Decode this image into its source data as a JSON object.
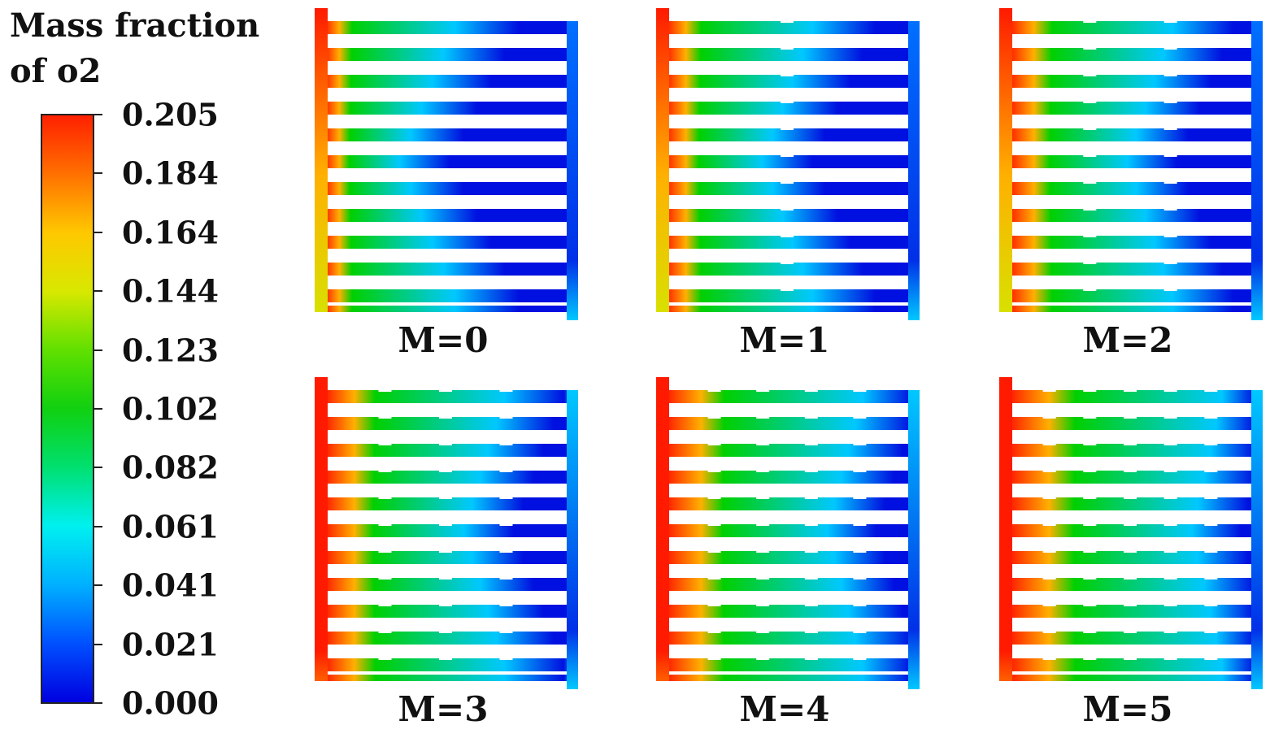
{
  "legend": {
    "title": "Mass fraction\nof o2",
    "ticks": [
      "0.205",
      "0.184",
      "0.164",
      "0.144",
      "0.123",
      "0.102",
      "0.082",
      "0.061",
      "0.041",
      "0.021",
      "0.000"
    ],
    "colormap": [
      "#0000e0",
      "#0050ff",
      "#00b0ff",
      "#00f0f0",
      "#00e070",
      "#10d010",
      "#60e000",
      "#d8e800",
      "#ffc800",
      "#ff7000",
      "#ff2000"
    ]
  },
  "panels": [
    {
      "label": "M=0",
      "baffles": 0
    },
    {
      "label": "M=1",
      "baffles": 1
    },
    {
      "label": "M=2",
      "baffles": 2
    },
    {
      "label": "M=3",
      "baffles": 3
    },
    {
      "label": "M=4",
      "baffles": 4
    },
    {
      "label": "M=5",
      "baffles": 5
    }
  ],
  "colors": {
    "high": "#ff1a00",
    "mid_high": "#ffb000",
    "mid": "#00d000",
    "mid_low": "#00c8ff",
    "low": "#0010e0"
  }
}
